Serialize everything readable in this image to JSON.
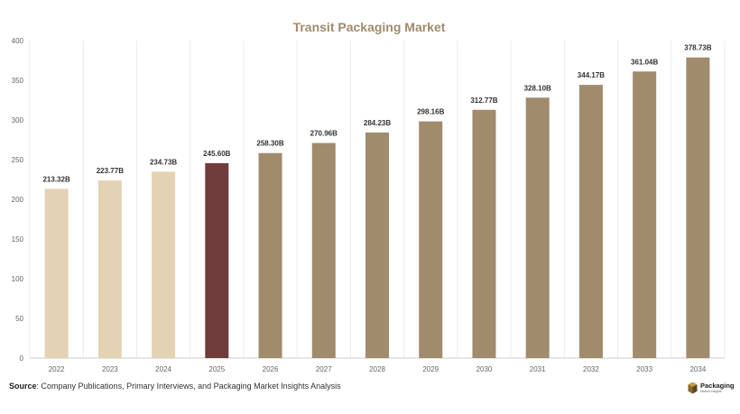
{
  "chart_data": {
    "type": "bar",
    "title": "Transit Packaging Market",
    "xlabel": "",
    "ylabel": "",
    "categories": [
      "2022",
      "2023",
      "2024",
      "2025",
      "2026",
      "2027",
      "2028",
      "2029",
      "2030",
      "2031",
      "2032",
      "2033",
      "2034"
    ],
    "values": [
      213.32,
      223.77,
      234.73,
      245.6,
      258.3,
      270.96,
      284.23,
      298.16,
      312.77,
      328.1,
      344.17,
      361.04,
      378.73
    ],
    "value_labels": [
      "213.32B",
      "223.77B",
      "234.73B",
      "245.60B",
      "258.30B",
      "270.96B",
      "284.23B",
      "298.16B",
      "312.77B",
      "328.10B",
      "344.17B",
      "361.04B",
      "378.73B"
    ],
    "bar_colors": [
      "#e3d3b4",
      "#e3d3b4",
      "#e3d3b4",
      "#6f3b3b",
      "#a08b6c",
      "#a08b6c",
      "#a08b6c",
      "#a08b6c",
      "#a08b6c",
      "#a08b6c",
      "#a08b6c",
      "#a08b6c",
      "#a08b6c"
    ],
    "ylim": [
      0,
      400
    ],
    "yticks": [
      "0",
      "50",
      "100",
      "150",
      "200",
      "250",
      "300",
      "350",
      "400"
    ],
    "grid": "vertical",
    "legend": "none",
    "colors": {
      "title": "#a08b6c",
      "historical": "#e3d3b4",
      "base_year": "#6f3b3b",
      "forecast": "#a08b6c",
      "tick_text": "#666666",
      "value_label": "#333333",
      "grid": "#ebebeb",
      "axis": "#cccccc"
    }
  },
  "footer": {
    "source_label": "Source",
    "source_text": ": Company Publications, Primary Interviews, and Packaging Market Insights Analysis"
  },
  "logo": {
    "name": "Packaging",
    "subtitle": "Market Insights",
    "icon": "cube-logo-icon"
  }
}
